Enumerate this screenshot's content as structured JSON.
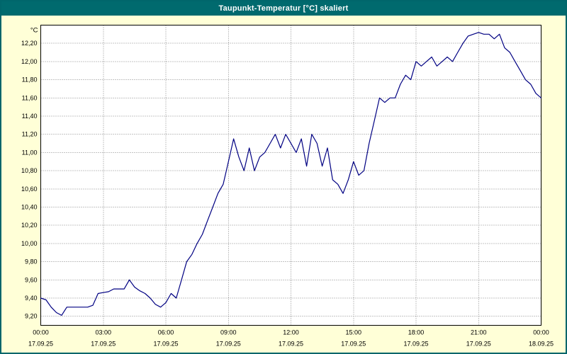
{
  "window": {
    "title": "Taupunkt-Temperatur [°C] skaliert"
  },
  "chart_data": {
    "type": "line",
    "title": "Taupunkt-Temperatur [°C] skaliert",
    "ylabel": "°C",
    "xlabel": "",
    "grid": true,
    "legend": "none",
    "line_color": "#000082",
    "grid_color": "#8a8a8a",
    "plot_bg": "#ffffff",
    "page_bg": "#ffffd7",
    "titlebar_color": "#006a6e",
    "xlim": [
      0,
      24
    ],
    "ylim": [
      9.1,
      12.4
    ],
    "x_start_hours": 0,
    "x_step_hours": 0.25,
    "values": [
      9.4,
      9.38,
      9.3,
      9.24,
      9.21,
      9.3,
      9.3,
      9.3,
      9.3,
      9.3,
      9.32,
      9.45,
      9.46,
      9.47,
      9.5,
      9.5,
      9.5,
      9.6,
      9.52,
      9.48,
      9.45,
      9.4,
      9.33,
      9.3,
      9.35,
      9.45,
      9.4,
      9.6,
      9.8,
      9.88,
      10.0,
      10.1,
      10.25,
      10.4,
      10.55,
      10.65,
      10.9,
      11.15,
      10.95,
      10.8,
      11.05,
      10.8,
      10.95,
      11.0,
      11.1,
      11.2,
      11.05,
      11.2,
      11.1,
      11.0,
      11.15,
      10.85,
      11.2,
      11.1,
      10.85,
      11.05,
      10.7,
      10.65,
      10.55,
      10.7,
      10.9,
      10.75,
      10.8,
      11.1,
      11.35,
      11.6,
      11.55,
      11.6,
      11.6,
      11.75,
      11.85,
      11.8,
      12.0,
      11.95,
      12.0,
      12.05,
      11.95,
      12.0,
      12.05,
      12.0,
      12.1,
      12.2,
      12.28,
      12.3,
      12.32,
      12.3,
      12.3,
      12.25,
      12.3,
      12.15,
      12.1,
      12.0,
      11.9,
      11.8,
      11.75,
      11.65,
      11.6
    ],
    "y_ticks": [
      12.2,
      12.0,
      11.8,
      11.6,
      11.4,
      11.2,
      11.0,
      10.8,
      10.6,
      10.4,
      10.2,
      10.0,
      9.8,
      9.6,
      9.4,
      9.2
    ],
    "y_tick_labels": [
      "12,20",
      "12,00",
      "11,80",
      "11,60",
      "11,40",
      "11,20",
      "11,00",
      "10,80",
      "10,60",
      "10,40",
      "10,20",
      "10,00",
      "9,80",
      "9,60",
      "9,40",
      "9,20"
    ],
    "x_tick_hours": [
      0,
      3,
      6,
      9,
      12,
      15,
      18,
      21,
      24
    ],
    "x_tick_labels": [
      "00:00",
      "03:00",
      "06:00",
      "09:00",
      "12:00",
      "15:00",
      "18:00",
      "21:00",
      "00:00"
    ],
    "x_date_labels": [
      "17.09.25",
      "17.09.25",
      "17.09.25",
      "17.09.25",
      "17.09.25",
      "17.09.25",
      "17.09.25",
      "17.09.25",
      "18.09.25"
    ]
  }
}
